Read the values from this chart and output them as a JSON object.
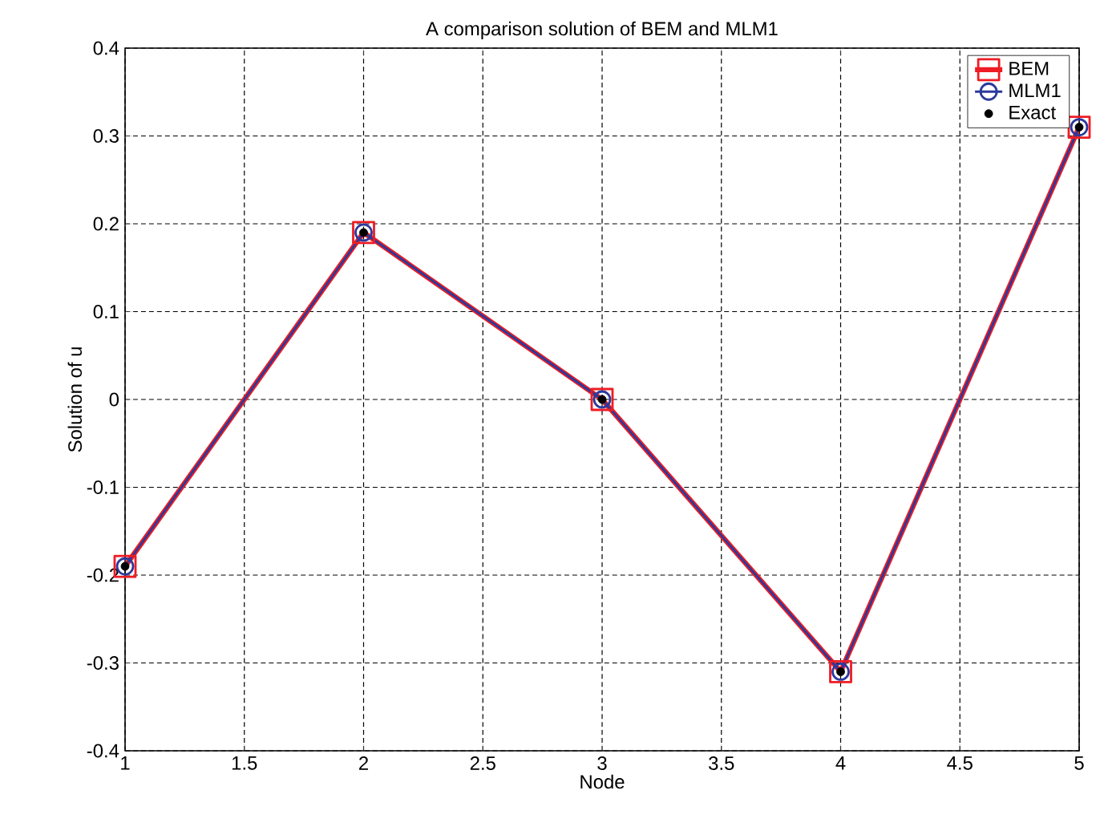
{
  "chart_data": {
    "type": "line",
    "title": "A comparison solution of BEM and MLM1",
    "xlabel": "Node",
    "ylabel": "Solution of u",
    "x": [
      1,
      2,
      3,
      4,
      5
    ],
    "series": [
      {
        "name": "BEM",
        "color": "#ee1c24",
        "values": [
          -0.19,
          0.19,
          0,
          -0.31,
          0.31
        ],
        "marker": "square"
      },
      {
        "name": "MLM1",
        "color": "#2b3a9c",
        "values": [
          -0.19,
          0.19,
          0,
          -0.31,
          0.31
        ],
        "marker": "circle"
      },
      {
        "name": "Exact",
        "type": "scatter",
        "color": "#000000",
        "values": [
          -0.19,
          0.19,
          0,
          -0.31,
          0.31
        ],
        "marker": "circle"
      }
    ],
    "xlim": [
      1,
      5
    ],
    "xticks": [
      1,
      1.5,
      2,
      2.5,
      3,
      3.5,
      4,
      4.5,
      5
    ],
    "ylim": [
      -0.4,
      0.4
    ],
    "yticks": [
      -0.4,
      -0.3,
      -0.2,
      -0.1,
      0,
      0.1,
      0.2,
      0.3,
      0.4
    ],
    "grid": true,
    "legend": "top right"
  }
}
